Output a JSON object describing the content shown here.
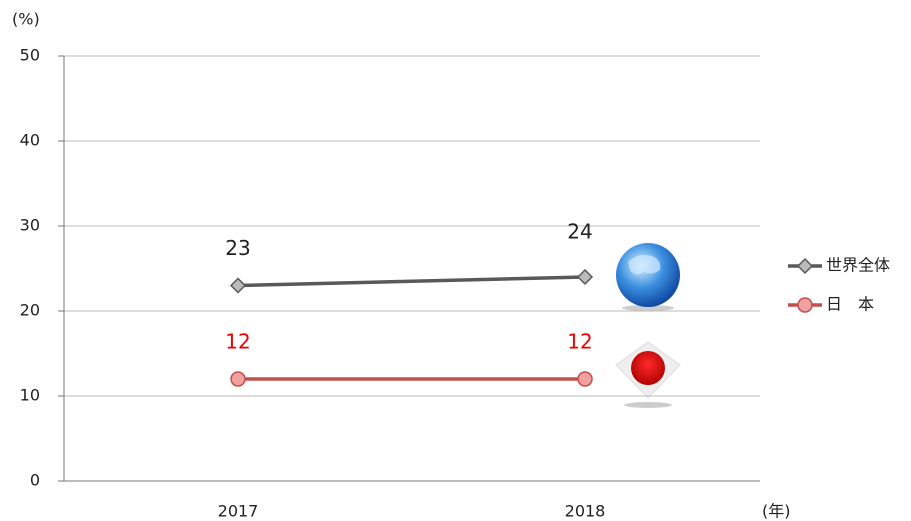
{
  "chart_data": {
    "type": "line",
    "categories": [
      "2017",
      "2018"
    ],
    "series": [
      {
        "name": "世界全体",
        "color": "#595959",
        "values": [
          23,
          24
        ]
      },
      {
        "name": "日　本",
        "color": "#c0504d",
        "values": [
          12,
          12
        ]
      }
    ],
    "ylim": [
      0,
      50
    ],
    "yticks": [
      0,
      10,
      20,
      30,
      40,
      50
    ],
    "y_label": "(%)",
    "x_label": "(年)",
    "grid": true,
    "legend": "right"
  }
}
